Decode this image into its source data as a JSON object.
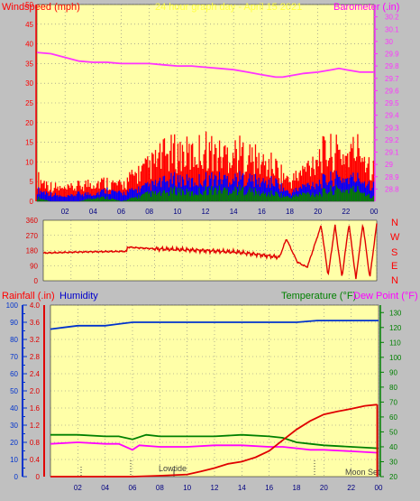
{
  "header": {
    "windspeed_label": "Windspeed (mph)",
    "title": "24 hour graph day - April 15 2021",
    "barometer_label": "Barometer (.in)"
  },
  "direction_labels": [
    "N",
    "W",
    "S",
    "E",
    "N"
  ],
  "lower_header": {
    "rainfall_label": "Rainfall (.in)",
    "humidity_label": "Humidity",
    "temperature_label": "Temperature (°F)",
    "dewpoint_label": "Dew Point (°F)"
  },
  "annotations": {
    "lowtide": "Lowtide",
    "moonset": "Moon Set"
  },
  "colors": {
    "plot_bg": "#ffffa8",
    "frame_bg": "#c0c0c0",
    "wind_gust": "#ff0000",
    "wind_avg": "#0000ff",
    "wind_low": "#008000",
    "barometer": "#ff33ff",
    "direction": "#e00000",
    "rainfall": "#e00000",
    "humidity": "#0033cc",
    "temperature": "#008000",
    "dewpoint": "#ff00ff"
  },
  "chart_data": [
    {
      "type": "line",
      "name": "wind-barometer",
      "x_ticks": [
        "02",
        "04",
        "06",
        "08",
        "10",
        "12",
        "14",
        "16",
        "18",
        "20",
        "22",
        "00"
      ],
      "xlim": [
        0,
        24
      ],
      "left_axis": {
        "label": "Windspeed (mph)",
        "ylim": [
          0,
          50
        ],
        "ticks": [
          "0",
          "5",
          "10",
          "15",
          "20",
          "25",
          "30",
          "35",
          "40",
          "45",
          "50"
        ]
      },
      "right_axis": {
        "label": "Barometer (.in)",
        "ylim": [
          28.7,
          30.3
        ],
        "ticks": [
          "28.8",
          "28.9",
          "29",
          "29.1",
          "29.2",
          "29.3",
          "29.4",
          "29.5",
          "29.6",
          "29.7",
          "29.8",
          "29.9",
          "30",
          "30.1",
          "30.2"
        ]
      },
      "series": [
        {
          "name": "Barometer",
          "x": [
            0,
            1,
            2,
            3,
            4,
            5,
            6,
            7,
            8,
            9,
            10,
            11,
            12,
            13,
            14,
            15,
            16,
            17,
            17.5,
            18,
            19,
            20,
            21,
            21.5,
            22,
            23,
            24
          ],
          "y": [
            29.91,
            29.9,
            29.87,
            29.84,
            29.83,
            29.83,
            29.82,
            29.82,
            29.82,
            29.81,
            29.8,
            29.8,
            29.79,
            29.78,
            29.77,
            29.75,
            29.73,
            29.71,
            29.71,
            29.72,
            29.74,
            29.75,
            29.77,
            29.78,
            29.77,
            29.75,
            29.75
          ]
        },
        {
          "name": "Gust",
          "x": [
            0,
            1,
            2,
            3,
            4,
            5,
            6,
            7,
            8,
            9,
            10,
            11,
            12,
            13,
            14,
            15,
            16,
            17,
            18,
            19,
            20,
            21,
            22,
            23,
            24
          ],
          "y": [
            6,
            4,
            3,
            4,
            5,
            5,
            4,
            7,
            9,
            12,
            13,
            12,
            14,
            12,
            13,
            12,
            10,
            9,
            5,
            8,
            12,
            13,
            12,
            14,
            8
          ]
        },
        {
          "name": "Average",
          "x": [
            0,
            1,
            2,
            3,
            4,
            5,
            6,
            7,
            8,
            9,
            10,
            11,
            12,
            13,
            14,
            15,
            16,
            17,
            18,
            19,
            20,
            21,
            22,
            23,
            24
          ],
          "y": [
            3,
            2,
            1,
            2,
            2,
            3,
            2,
            3,
            4,
            5,
            6,
            5,
            6,
            6,
            6,
            6,
            5,
            5,
            2,
            4,
            5,
            6,
            6,
            6,
            4
          ]
        },
        {
          "name": "Low",
          "x": [
            0,
            1,
            2,
            3,
            4,
            5,
            6,
            7,
            8,
            9,
            10,
            11,
            12,
            13,
            14,
            15,
            16,
            17,
            18,
            19,
            20,
            21,
            22,
            23,
            24
          ],
          "y": [
            1,
            0,
            0,
            0,
            1,
            1,
            0,
            1,
            2,
            2,
            3,
            2,
            3,
            3,
            3,
            3,
            2,
            2,
            1,
            2,
            2,
            3,
            3,
            3,
            1
          ]
        }
      ]
    },
    {
      "type": "line",
      "name": "wind-direction",
      "xlim": [
        0,
        24
      ],
      "y_axis": {
        "ylim": [
          0,
          360
        ],
        "ticks": [
          "0",
          "90",
          "180",
          "270",
          "360"
        ]
      },
      "series": [
        {
          "name": "Direction",
          "x": [
            0,
            3,
            6,
            6.05,
            8,
            10,
            12,
            14,
            16,
            17,
            17.5,
            18,
            18.3,
            19,
            20,
            20.5,
            21,
            21.5,
            22,
            22.5,
            23,
            23.5,
            24
          ],
          "y": [
            165,
            172,
            175,
            200,
            190,
            185,
            178,
            170,
            150,
            140,
            250,
            160,
            110,
            80,
            330,
            30,
            330,
            20,
            340,
            10,
            340,
            15,
            340
          ]
        }
      ]
    },
    {
      "type": "line",
      "name": "rain-humidity-temperature",
      "x_ticks": [
        "02",
        "04",
        "06",
        "08",
        "10",
        "12",
        "14",
        "16",
        "18",
        "20",
        "22",
        "00"
      ],
      "xlim": [
        0,
        24
      ],
      "rain_axis": {
        "label": "Rainfall (.in)",
        "ylim": [
          0,
          4.0
        ],
        "ticks": [
          "0",
          "0.4",
          "0.8",
          "1.2",
          "1.6",
          "2.0",
          "2.4",
          "2.8",
          "3.2",
          "3.6",
          "4.0"
        ]
      },
      "humidity_axis": {
        "label": "Humidity",
        "ylim": [
          0,
          100
        ],
        "ticks": [
          "0",
          "10",
          "20",
          "30",
          "40",
          "50",
          "60",
          "70",
          "80",
          "90",
          "100"
        ]
      },
      "temperature_axis": {
        "label": "Temperature (°F)",
        "ylim": [
          20,
          135
        ],
        "ticks": [
          "20",
          "30",
          "40",
          "50",
          "60",
          "70",
          "80",
          "90",
          "100",
          "110",
          "120",
          "130"
        ]
      },
      "series": [
        {
          "name": "Rainfall",
          "x": [
            0,
            6,
            8,
            10,
            11,
            12,
            13,
            14,
            15,
            16,
            17,
            18,
            19,
            20,
            21,
            22,
            23,
            23.9
          ],
          "y": [
            0,
            0,
            0.02,
            0.05,
            0.12,
            0.2,
            0.3,
            0.35,
            0.45,
            0.6,
            0.85,
            1.1,
            1.3,
            1.45,
            1.52,
            1.58,
            1.65,
            1.68
          ]
        },
        {
          "name": "Humidity",
          "x": [
            0,
            1,
            2,
            3,
            4,
            5,
            6,
            8,
            10,
            12,
            14,
            16,
            18,
            19.5,
            20,
            22,
            24
          ],
          "y": [
            86,
            87,
            88,
            88,
            88,
            89,
            90,
            90,
            90,
            90,
            90,
            90,
            90,
            91,
            91,
            91,
            91
          ]
        },
        {
          "name": "Temperature",
          "x": [
            0,
            2,
            4,
            5,
            6,
            7,
            8,
            10,
            12,
            14,
            16,
            17,
            18,
            19,
            20,
            22,
            24
          ],
          "y": [
            48,
            48,
            47,
            47,
            45,
            48,
            47,
            47,
            47,
            48,
            47,
            46,
            43,
            42,
            41,
            40,
            39
          ]
        },
        {
          "name": "Dew Point",
          "x": [
            0,
            2,
            4,
            5,
            6,
            6.5,
            8,
            10,
            12,
            14,
            16,
            17,
            18,
            19,
            20,
            22,
            24
          ],
          "y": [
            42,
            43,
            42,
            42,
            38,
            41,
            40,
            40,
            41,
            41,
            40,
            40,
            39,
            38,
            38,
            37,
            36
          ]
        }
      ]
    }
  ]
}
